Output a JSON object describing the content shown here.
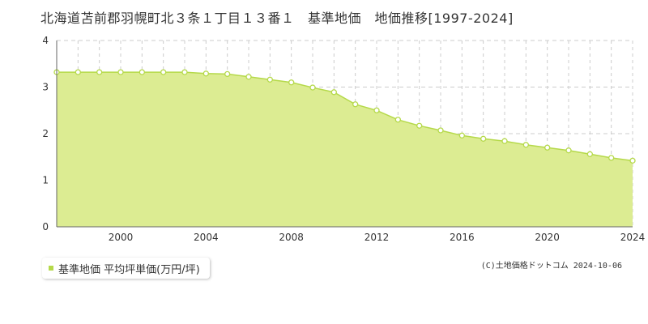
{
  "chart_data": {
    "type": "area",
    "title": "北海道苫前郡羽幌町北３条１丁目１３番１　基準地価　地価推移[1997-2024]",
    "xlabel": "",
    "ylabel": "",
    "x": [
      1997,
      1998,
      1999,
      2000,
      2001,
      2002,
      2003,
      2004,
      2005,
      2006,
      2007,
      2008,
      2009,
      2010,
      2011,
      2012,
      2013,
      2014,
      2015,
      2016,
      2017,
      2018,
      2019,
      2020,
      2021,
      2022,
      2023,
      2024
    ],
    "series": [
      {
        "name": "基準地価 平均坪単価(万円/坪)",
        "values": [
          3.32,
          3.32,
          3.32,
          3.32,
          3.32,
          3.32,
          3.32,
          3.29,
          3.28,
          3.22,
          3.16,
          3.1,
          2.99,
          2.89,
          2.63,
          2.5,
          2.3,
          2.17,
          2.07,
          1.96,
          1.89,
          1.84,
          1.76,
          1.7,
          1.64,
          1.56,
          1.48,
          1.42
        ]
      }
    ],
    "xlim": [
      1997,
      2024
    ],
    "ylim": [
      0,
      4
    ],
    "xticks": [
      "2000",
      "2004",
      "2008",
      "2012",
      "2016",
      "2020",
      "2024"
    ],
    "yticks": [
      "0",
      "1",
      "2",
      "3",
      "4"
    ],
    "grid": true,
    "legend": "bottom-left",
    "colors": {
      "fill": "#dcec92",
      "line": "#b5d94a",
      "point_fill": "#ffffff",
      "grid": "#cccccc"
    }
  },
  "legend": {
    "label": "基準地価 平均坪単価(万円/坪)"
  },
  "copyright": "(C)土地価格ドットコム 2024-10-06"
}
